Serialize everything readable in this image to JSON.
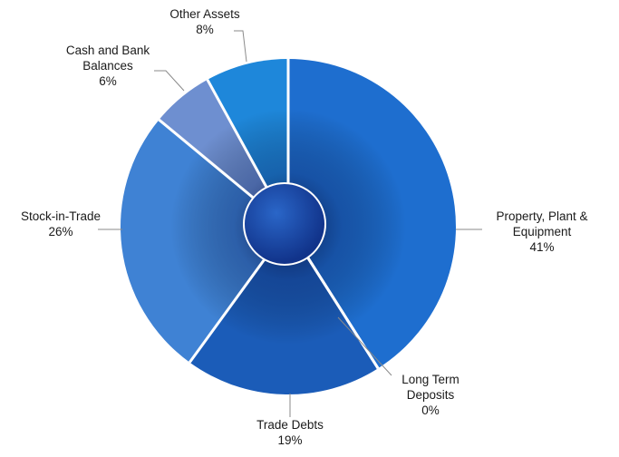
{
  "chart_data": {
    "type": "pie",
    "variant": "donut-with-center-hub",
    "title": "",
    "legend": "none",
    "unit": "%",
    "slices": [
      {
        "name_lines": [
          "Property, Plant &",
          "Equipment"
        ],
        "label": "41%",
        "value": 41,
        "color": "#1E6ECF"
      },
      {
        "name_lines": [
          "Long Term",
          "Deposits"
        ],
        "label": "0%",
        "value": 0,
        "color": "#1E6ECF"
      },
      {
        "name_lines": [
          "Trade Debts"
        ],
        "label": "19%",
        "value": 19,
        "color": "#1B5CB8"
      },
      {
        "name_lines": [
          "Stock-in-Trade"
        ],
        "label": "26%",
        "value": 26,
        "color": "#3F82D4"
      },
      {
        "name_lines": [
          "Cash and Bank",
          "Balances"
        ],
        "label": "6%",
        "value": 6,
        "color": "#6E8FD0"
      },
      {
        "name_lines": [
          "Other  Assets"
        ],
        "label": "8%",
        "value": 8,
        "color": "#1E87DA"
      }
    ]
  }
}
